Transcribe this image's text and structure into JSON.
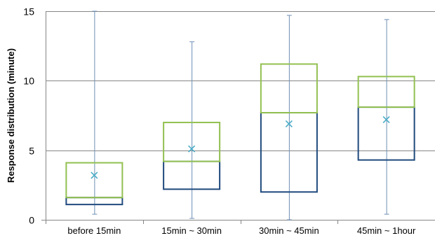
{
  "chart_data": {
    "type": "box",
    "title": "",
    "xlabel": "",
    "ylabel": "Response distribution (minute)",
    "ylim": [
      0,
      15
    ],
    "yticks": [
      0,
      5,
      10,
      15
    ],
    "grid": "horizontal",
    "categories": [
      "before 15min",
      "15min ~ 30min",
      "30min ~ 45min",
      "45min ~ 1hour"
    ],
    "boxes": [
      {
        "min": 0.4,
        "q1": 1.1,
        "median": 1.6,
        "q3": 4.1,
        "max": 15.0,
        "mean": 3.2
      },
      {
        "min": 0.1,
        "q1": 2.2,
        "median": 4.2,
        "q3": 7.0,
        "max": 12.8,
        "mean": 5.1
      },
      {
        "min": 0.0,
        "q1": 2.0,
        "median": 7.7,
        "q3": 11.2,
        "max": 14.7,
        "mean": 6.9
      },
      {
        "min": 0.4,
        "q1": 4.3,
        "median": 8.1,
        "q3": 10.3,
        "max": 14.4,
        "mean": 7.2
      }
    ],
    "colors": {
      "lower_box": "#1f497d",
      "upper_box": "#92c050",
      "whisker": "#6e8fb5",
      "mean_marker": "#4bacc6",
      "gridline": "#868686"
    }
  }
}
